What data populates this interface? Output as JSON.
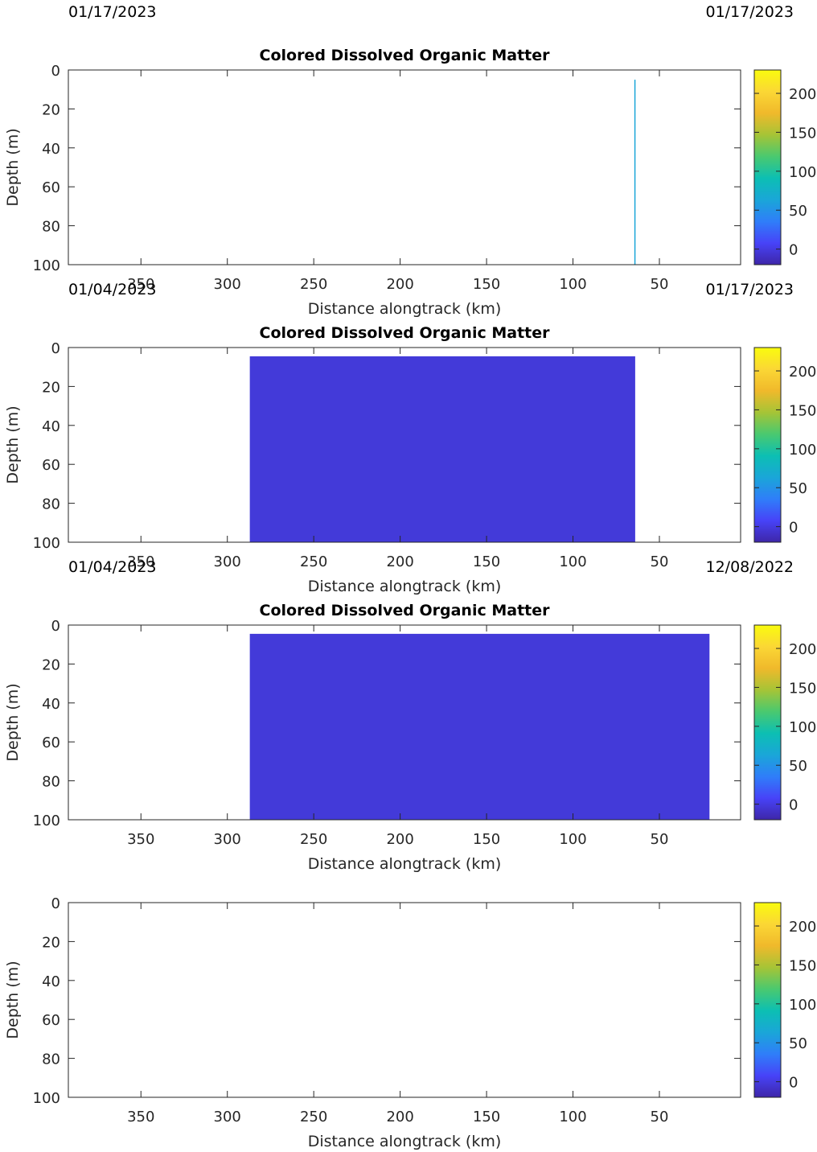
{
  "colorbar": {
    "colors": [
      "#3e26a8",
      "#4743f8",
      "#2f7ef9",
      "#1aa6d8",
      "#0cbfb3",
      "#4ac96f",
      "#a6c436",
      "#f0b92b",
      "#fbd735",
      "#f9fb0e"
    ],
    "ticks": [
      0,
      50,
      100,
      150,
      200
    ],
    "range": [
      -20,
      230
    ]
  },
  "chart_data": [
    {
      "type": "heatmap",
      "title": "Colored Dissolved Organic Matter",
      "date_left": "01/17/2023",
      "date_right": "01/17/2023",
      "xlabel": "Distance alongtrack (km)",
      "ylabel": "Depth (m)",
      "xlim": [
        392,
        3
      ],
      "ylim": [
        0,
        100
      ],
      "x_reversed": true,
      "y_reversed": true,
      "xticks": [
        350,
        300,
        250,
        200,
        150,
        100,
        50
      ],
      "yticks": [
        0,
        20,
        40,
        60,
        80,
        100
      ],
      "data_regions": [
        {
          "x_start": 64.5,
          "x_end": 63.8,
          "depth_start": 5,
          "depth_end": 100,
          "value": 100,
          "color": "#1aa6d8"
        }
      ]
    },
    {
      "type": "heatmap",
      "title": "Colored Dissolved Organic Matter",
      "date_left": "01/04/2023",
      "date_right": "01/17/2023",
      "xlabel": "Distance alongtrack (km)",
      "ylabel": "Depth (m)",
      "xlim": [
        392,
        3
      ],
      "ylim": [
        0,
        100
      ],
      "x_reversed": true,
      "y_reversed": true,
      "xticks": [
        350,
        300,
        250,
        200,
        150,
        100,
        50
      ],
      "yticks": [
        0,
        20,
        40,
        60,
        80,
        100
      ],
      "data_regions": [
        {
          "x_start": 287,
          "x_end": 64,
          "depth_start": 4.5,
          "depth_end": 100,
          "value": 0,
          "color": "#433ad9"
        }
      ]
    },
    {
      "type": "heatmap",
      "title": "Colored Dissolved Organic Matter",
      "date_left": "01/04/2023",
      "date_right": "12/08/2022",
      "xlabel": "Distance alongtrack (km)",
      "ylabel": "Depth (m)",
      "xlim": [
        392,
        3
      ],
      "ylim": [
        0,
        100
      ],
      "x_reversed": true,
      "y_reversed": true,
      "xticks": [
        350,
        300,
        250,
        200,
        150,
        100,
        50
      ],
      "yticks": [
        0,
        20,
        40,
        60,
        80,
        100
      ],
      "data_regions": [
        {
          "x_start": 287,
          "x_end": 21,
          "depth_start": 4.5,
          "depth_end": 100,
          "value": 0,
          "color": "#433ad9"
        }
      ]
    },
    {
      "type": "heatmap",
      "title": "",
      "date_left": "",
      "date_right": "",
      "xlabel": "Distance alongtrack (km)",
      "ylabel": "Depth (m)",
      "xlim": [
        392,
        3
      ],
      "ylim": [
        0,
        100
      ],
      "x_reversed": true,
      "y_reversed": true,
      "xticks": [
        350,
        300,
        250,
        200,
        150,
        100,
        50
      ],
      "yticks": [
        0,
        20,
        40,
        60,
        80,
        100
      ],
      "data_regions": []
    }
  ]
}
